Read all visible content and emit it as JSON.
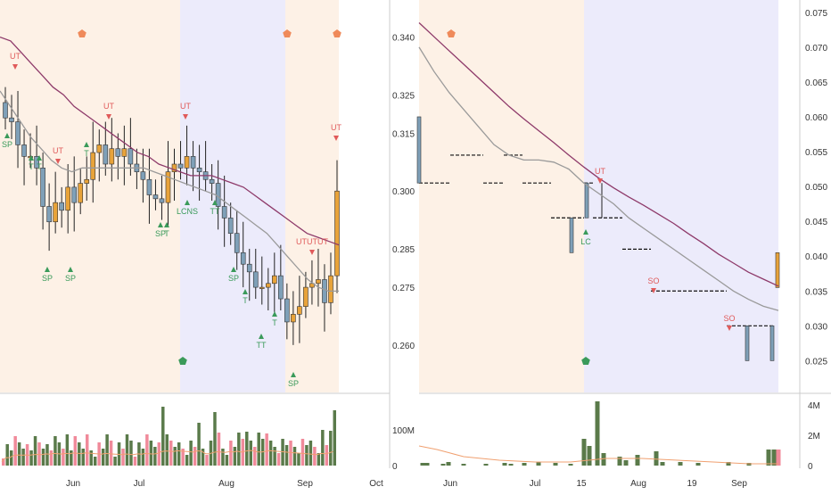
{
  "colors": {
    "up_candle": "#e8a33a",
    "down_candle": "#7fa0b8",
    "ma_fast": "#9a9a9a",
    "ma_slow": "#8e3a6a",
    "marker_red": "#e05a5a",
    "marker_green": "#3a9a5a",
    "marker_orange": "#ef8a5a",
    "vol_green": "#5a7a4a",
    "vol_red": "#f08a9a",
    "vol_ma": "#f0a070",
    "band_peach": "#fdf1e6",
    "band_lavender": "#ecebfb",
    "axis_text": "#333333",
    "grid": "#e6e6e6"
  },
  "chart_data": [
    {
      "type": "candlestick",
      "x_ticks": [
        "Jun",
        "Jul",
        "Aug",
        "Sep",
        "Oct"
      ],
      "y_ticks": [
        "0.340",
        "0.325",
        "0.315",
        "0.300",
        "0.285",
        "0.275",
        "0.260"
      ],
      "ylim": [
        0.25,
        0.345
      ],
      "closes": [
        0.319,
        0.318,
        0.312,
        0.309,
        0.309,
        0.306,
        0.296,
        0.292,
        0.297,
        0.295,
        0.301,
        0.297,
        0.302,
        0.303,
        0.31,
        0.312,
        0.307,
        0.311,
        0.309,
        0.311,
        0.307,
        0.305,
        0.303,
        0.299,
        0.298,
        0.297,
        0.305,
        0.307,
        0.306,
        0.309,
        0.306,
        0.305,
        0.303,
        0.302,
        0.296,
        0.293,
        0.289,
        0.284,
        0.281,
        0.279,
        0.275,
        0.275,
        0.276,
        0.278,
        0.272,
        0.266,
        0.268,
        0.27,
        0.275,
        0.276,
        0.277,
        0.271,
        0.278,
        0.3
      ],
      "ma_fast": [
        0.326,
        0.322,
        0.318,
        0.314,
        0.311,
        0.308,
        0.306,
        0.305,
        0.306,
        0.306,
        0.306,
        0.306,
        0.306,
        0.306,
        0.306,
        0.305,
        0.304,
        0.303,
        0.302,
        0.301,
        0.3,
        0.299,
        0.297,
        0.295,
        0.293,
        0.291,
        0.289,
        0.286,
        0.283,
        0.28,
        0.277,
        0.275,
        0.274,
        0.274
      ],
      "ma_slow": [
        0.34,
        0.339,
        0.336,
        0.333,
        0.33,
        0.327,
        0.325,
        0.322,
        0.32,
        0.318,
        0.316,
        0.314,
        0.312,
        0.31,
        0.309,
        0.307,
        0.306,
        0.305,
        0.304,
        0.304,
        0.304,
        0.303,
        0.302,
        0.301,
        0.299,
        0.297,
        0.295,
        0.293,
        0.291,
        0.289,
        0.288,
        0.287,
        0.286
      ],
      "annotations": [
        {
          "label": "UT",
          "kind": "up"
        },
        {
          "label": "SP",
          "kind": "down"
        },
        {
          "label": "T",
          "kind": "down"
        },
        {
          "label": "T",
          "kind": "down"
        },
        {
          "label": "UT",
          "kind": "up"
        },
        {
          "label": "SP",
          "kind": "down"
        },
        {
          "label": "SP",
          "kind": "down"
        },
        {
          "label": "T",
          "kind": "down"
        },
        {
          "label": "UT",
          "kind": "up"
        },
        {
          "label": "SP",
          "kind": "down"
        },
        {
          "label": "T",
          "kind": "down"
        },
        {
          "label": "UT",
          "kind": "up"
        },
        {
          "label": "LCNS",
          "kind": "down"
        },
        {
          "label": "TT",
          "kind": "down"
        },
        {
          "label": "SP",
          "kind": "down"
        },
        {
          "label": "T",
          "kind": "down"
        },
        {
          "label": "TT",
          "kind": "down"
        },
        {
          "label": "T",
          "kind": "down"
        },
        {
          "label": "SP",
          "kind": "down"
        },
        {
          "label": "UTUTUT",
          "kind": "up"
        },
        {
          "label": "UT",
          "kind": "up"
        }
      ],
      "volume_ticks": [
        "100M",
        "0"
      ]
    },
    {
      "type": "step",
      "x_ticks": [
        "Jun",
        "Jul",
        "15",
        "Aug",
        "19",
        "Sep"
      ],
      "y_ticks": [
        "0.075",
        "0.070",
        "0.065",
        "0.060",
        "0.055",
        "0.050",
        "0.045",
        "0.040",
        "0.035",
        "0.030",
        "0.025"
      ],
      "ylim": [
        0.023,
        0.076
      ],
      "annotations": [
        {
          "label": "UT",
          "kind": "up"
        },
        {
          "label": "LC",
          "kind": "down"
        },
        {
          "label": "SO",
          "kind": "up"
        },
        {
          "label": "SO",
          "kind": "up"
        }
      ],
      "volume_ticks": [
        "4M",
        "2M",
        "0"
      ]
    }
  ]
}
